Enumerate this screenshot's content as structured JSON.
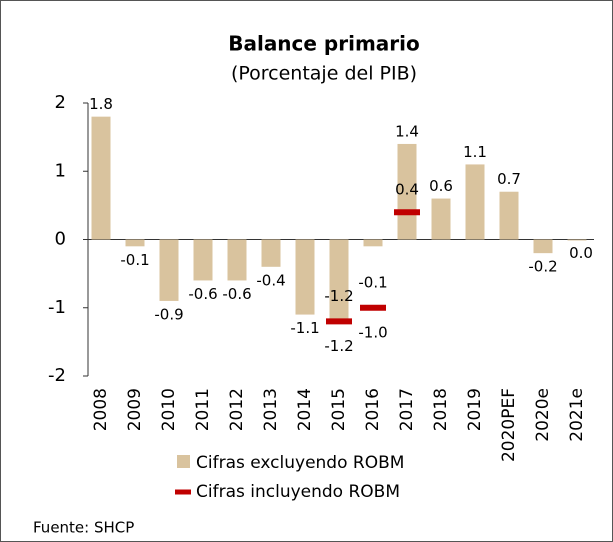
{
  "chart_data": {
    "type": "bar",
    "title": "Balance primario",
    "subtitle": "(Porcentaje del PIB)",
    "categories": [
      "2008",
      "2009",
      "2010",
      "2011",
      "2012",
      "2013",
      "2014",
      "2015",
      "2016",
      "2017",
      "2018",
      "2019",
      "2020PEF",
      "2020e",
      "2021e"
    ],
    "series": [
      {
        "name": "Cifras excluyendo ROBM",
        "color": "#d9c39e",
        "values": [
          1.8,
          -0.1,
          -0.9,
          -0.6,
          -0.6,
          -0.4,
          -1.1,
          -1.2,
          -0.1,
          1.4,
          0.6,
          1.1,
          0.7,
          -0.2,
          0.0
        ],
        "value_labels": [
          "1.8",
          "-0.1",
          "-0.9",
          "-0.6",
          "-0.6",
          "-0.4",
          "-1.1",
          "-1.2",
          "-0.1",
          "1.4",
          "0.6",
          "1.1",
          "0.7",
          "-0.2",
          "0.0"
        ]
      },
      {
        "name": "Cifras incluyendo ROBM",
        "color": "#c00000",
        "values": [
          null,
          null,
          null,
          null,
          null,
          null,
          null,
          -1.2,
          -1.0,
          0.4,
          null,
          null,
          null,
          null,
          null
        ],
        "value_labels": [
          null,
          null,
          null,
          null,
          null,
          null,
          null,
          "-1.2",
          "-1.0",
          "0.4",
          null,
          null,
          null,
          null,
          null
        ]
      }
    ],
    "ylim": [
      -2,
      2
    ],
    "yticks": [
      -2,
      -1,
      0,
      1,
      2
    ],
    "source": "Fuente: SHCP"
  }
}
